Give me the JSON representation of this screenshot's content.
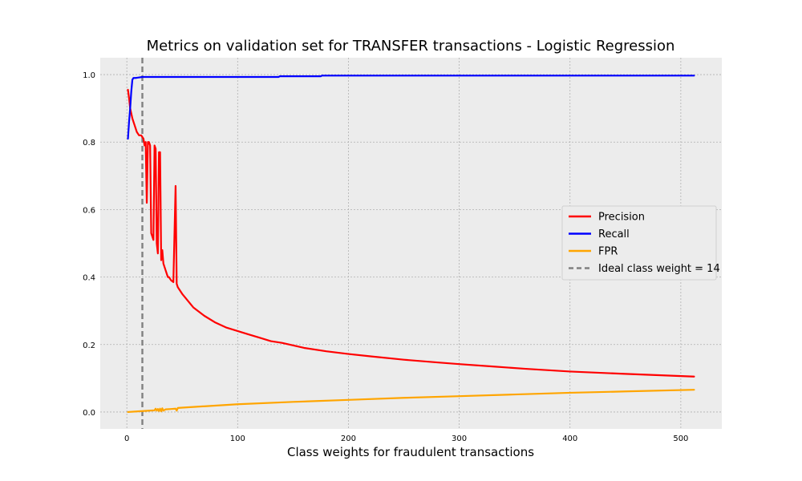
{
  "chart_data": {
    "type": "line",
    "title": "Metrics on validation set for TRANSFER transactions - Logistic Regression",
    "xlabel": "Class weights for fraudulent transactions",
    "ylabel": "",
    "xlim": [
      -24,
      537
    ],
    "ylim": [
      -0.05,
      1.05
    ],
    "xticks": [
      0,
      100,
      200,
      300,
      400,
      500
    ],
    "yticks": [
      0.0,
      0.2,
      0.4,
      0.6,
      0.8,
      1.0
    ],
    "xtick_labels": [
      "0",
      "100",
      "200",
      "300",
      "400",
      "500"
    ],
    "ytick_labels": [
      "0.0",
      "0.2",
      "0.4",
      "0.6",
      "0.8",
      "1.0"
    ],
    "grid": true,
    "legend_position": "center-right",
    "background": "#ececec",
    "series": [
      {
        "name": "Precision",
        "color": "#ff0000",
        "style": "solid",
        "x": [
          1,
          2,
          3,
          5,
          7,
          9,
          11,
          13,
          15,
          16,
          17,
          18,
          19,
          20,
          21,
          22,
          23,
          24,
          25,
          26,
          27,
          28,
          29,
          30,
          31,
          32,
          33,
          34,
          35,
          36,
          37,
          38,
          40,
          42,
          44,
          45,
          46,
          50,
          55,
          60,
          70,
          80,
          90,
          100,
          110,
          120,
          130,
          140,
          160,
          180,
          200,
          220,
          250,
          280,
          300,
          330,
          360,
          400,
          450,
          512
        ],
        "values": [
          0.955,
          0.93,
          0.9,
          0.87,
          0.85,
          0.83,
          0.82,
          0.82,
          0.81,
          0.79,
          0.8,
          0.62,
          0.8,
          0.8,
          0.79,
          0.53,
          0.52,
          0.51,
          0.79,
          0.78,
          0.5,
          0.47,
          0.77,
          0.77,
          0.45,
          0.48,
          0.44,
          0.43,
          0.42,
          0.41,
          0.4,
          0.4,
          0.39,
          0.385,
          0.67,
          0.38,
          0.37,
          0.35,
          0.33,
          0.31,
          0.285,
          0.265,
          0.25,
          0.24,
          0.23,
          0.22,
          0.21,
          0.205,
          0.19,
          0.18,
          0.172,
          0.165,
          0.155,
          0.147,
          0.142,
          0.135,
          0.128,
          0.12,
          0.113,
          0.105
        ]
      },
      {
        "name": "Recall",
        "color": "#0000ff",
        "style": "solid",
        "x": [
          1,
          2,
          3,
          4,
          5,
          6,
          8,
          10,
          14,
          20,
          50,
          100,
          137,
          138,
          175,
          176,
          250,
          350,
          450,
          512
        ],
        "values": [
          0.81,
          0.86,
          0.9,
          0.95,
          0.985,
          0.99,
          0.99,
          0.991,
          0.993,
          0.993,
          0.993,
          0.993,
          0.993,
          0.995,
          0.995,
          0.997,
          0.997,
          0.997,
          0.997,
          0.997
        ]
      },
      {
        "name": "FPR",
        "color": "#ffa500",
        "style": "solid",
        "x": [
          1,
          10,
          20,
          25,
          26,
          27,
          28,
          29,
          30,
          31,
          32,
          33,
          34,
          35,
          40,
          44,
          45,
          46,
          50,
          100,
          150,
          200,
          250,
          300,
          350,
          400,
          450,
          512
        ],
        "values": [
          0.0,
          0.002,
          0.004,
          0.005,
          0.01,
          0.004,
          0.009,
          0.003,
          0.01,
          0.002,
          0.011,
          0.004,
          0.006,
          0.008,
          0.009,
          0.01,
          0.004,
          0.012,
          0.013,
          0.023,
          0.03,
          0.036,
          0.042,
          0.047,
          0.052,
          0.057,
          0.061,
          0.066
        ]
      }
    ],
    "reference_lines": [
      {
        "name": "Ideal class weight = 14",
        "orientation": "vertical",
        "x": 14,
        "color": "#808080",
        "style": "dashed"
      }
    ]
  }
}
